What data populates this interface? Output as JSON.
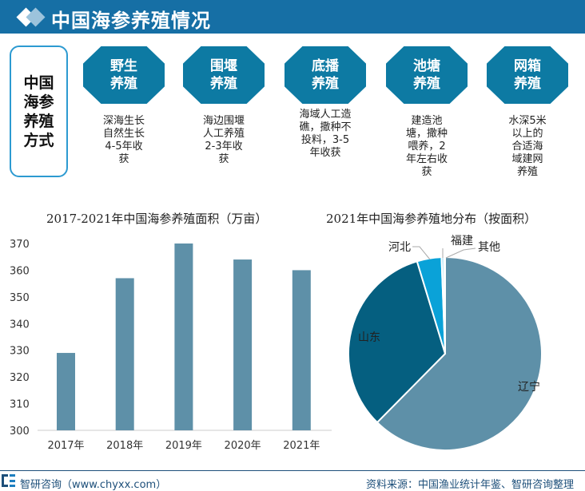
{
  "header": {
    "title": "中国海参养殖情况"
  },
  "methods": {
    "label": "中国海参养殖方式",
    "items": [
      {
        "name": "野生养殖",
        "desc": "深海生长自然生长4-5年收获"
      },
      {
        "name": "围堰养殖",
        "desc": "海边围堰人工养殖2-3年收获"
      },
      {
        "name": "底播养殖",
        "desc": "海域人工造礁，撒种不投料，3-5年收获"
      },
      {
        "name": "池塘养殖",
        "desc": "建造池塘，撒种喂养，2年左右收获"
      },
      {
        "name": "网箱养殖",
        "desc": "水深5米以上的合适海域建网养殖"
      }
    ]
  },
  "chart_data": [
    {
      "type": "bar",
      "title": "2017-2021年中国海参养殖面积（万亩）",
      "categories": [
        "2017年",
        "2018年",
        "2019年",
        "2020年",
        "2021年"
      ],
      "values": [
        329,
        357,
        370,
        364,
        360
      ],
      "ylim": [
        300,
        370
      ],
      "yticks": [
        300,
        310,
        320,
        330,
        340,
        350,
        360,
        370
      ],
      "color": "#5e90a8",
      "grid": false
    },
    {
      "type": "pie",
      "title": "2021年中国海参养殖地分布（按面积）",
      "labels": [
        "辽宁",
        "山东",
        "河北",
        "福建",
        "其他"
      ],
      "values": [
        62.4,
        32.9,
        4.1,
        0.4,
        0.2
      ],
      "colors": [
        "#5e90a8",
        "#055f80",
        "#0aa2d8",
        "#8fd3f0",
        "#c9e6f3"
      ]
    }
  ],
  "footer": {
    "brand": "智研咨询（www.chyxx.com）",
    "source": "资料来源：中国渔业统计年鉴、智研咨询整理"
  }
}
